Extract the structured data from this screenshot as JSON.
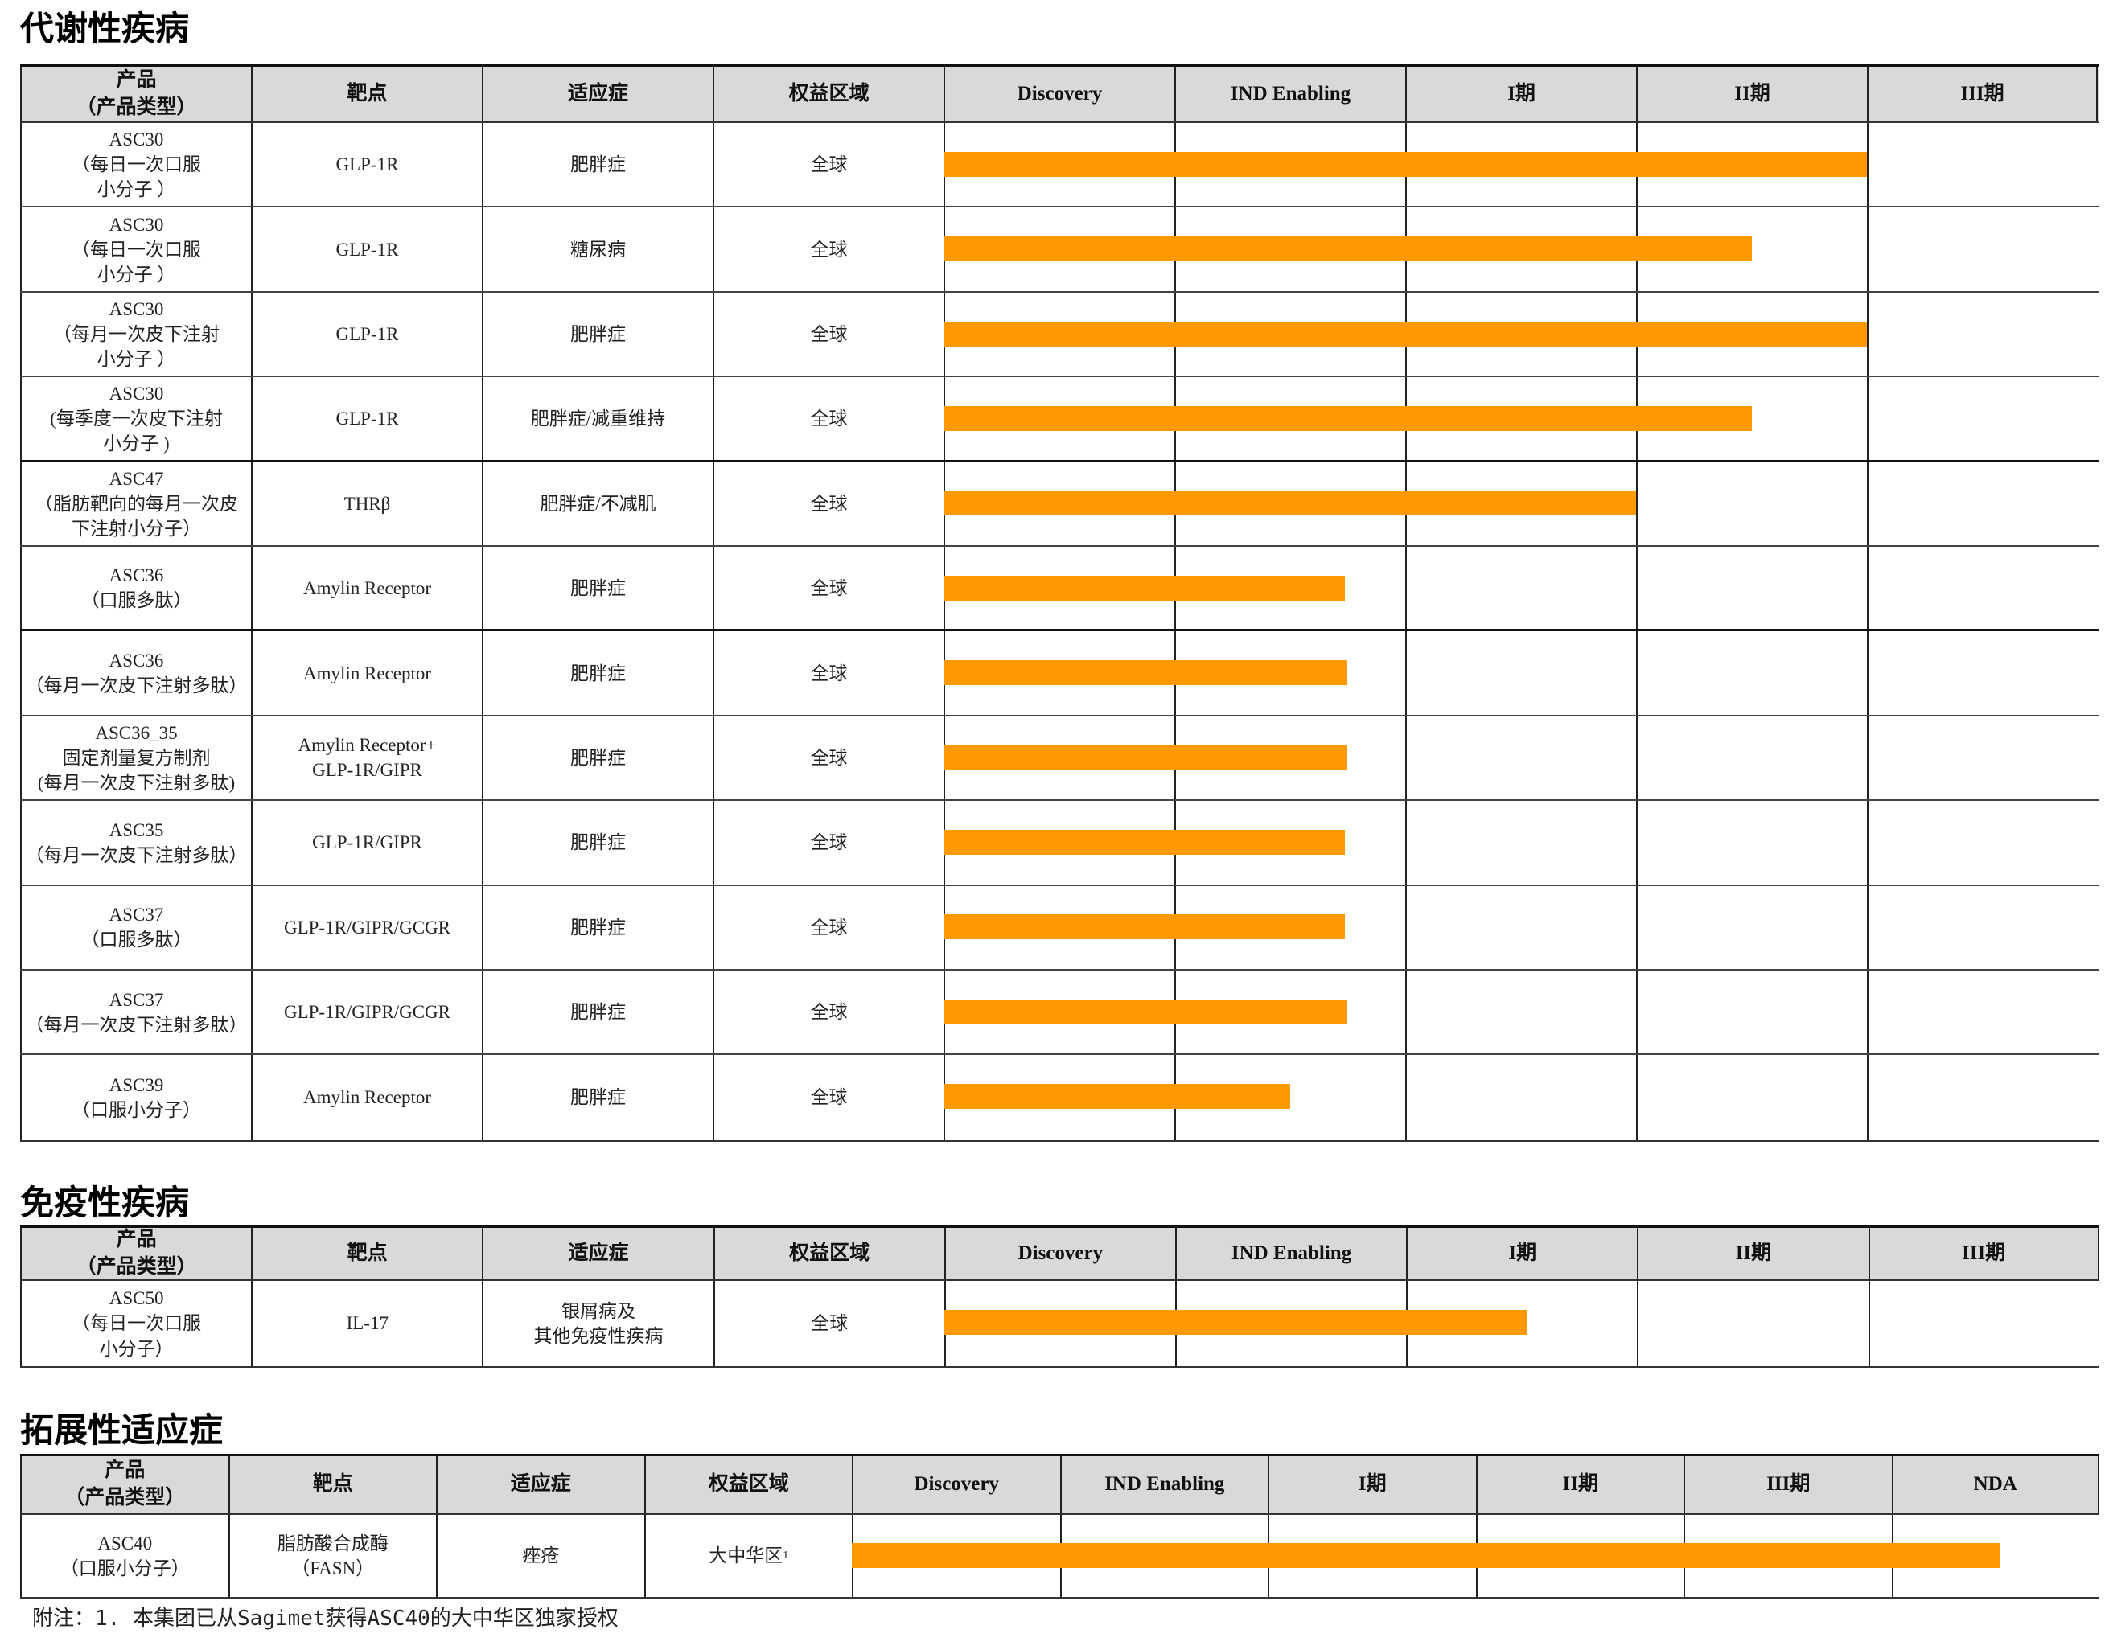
{
  "colors": {
    "bar": "#ff9900",
    "header_bg": "#d9d9d9"
  },
  "sections": [
    {
      "title": "代谢性疾病",
      "headers": [
        "产品\n（产品类型）",
        "靶点",
        "适应症",
        "权益区域",
        "Discovery",
        "IND Enabling",
        "I期",
        "II期",
        "III期"
      ],
      "rows": [
        {
          "product": "ASC30\n（每日一次口服\n小分子 ）",
          "target": "GLP-1R",
          "indication": "肥胖症",
          "region": "全球",
          "progress_phases": 4.0
        },
        {
          "product": "ASC30\n（每日一次口服\n小分子 ）",
          "target": "GLP-1R",
          "indication": "糖尿病",
          "region": "全球",
          "progress_phases": 3.5
        },
        {
          "product": "ASC30\n（每月一次皮下注射\n小分子 ）",
          "target": "GLP-1R",
          "indication": "肥胖症",
          "region": "全球",
          "progress_phases": 4.0
        },
        {
          "product": "ASC30\n(每季度一次皮下注射\n小分子 )",
          "target": "GLP-1R",
          "indication": "肥胖症/减重维持",
          "region": "全球",
          "progress_phases": 3.5
        },
        {
          "product": "ASC47\n（脂肪靶向的每月一次皮\n下注射小分子）",
          "target": "THRβ",
          "indication": "肥胖症/不减肌",
          "region": "全球",
          "progress_phases": 3.0
        },
        {
          "product": "ASC36\n（口服多肽）",
          "target": "Amylin Receptor",
          "indication": "肥胖症",
          "region": "全球",
          "progress_phases": 1.74
        },
        {
          "product": "ASC36\n（每月一次皮下注射多肽）",
          "target": "Amylin Receptor",
          "indication": "肥胖症",
          "region": "全球",
          "progress_phases": 1.75
        },
        {
          "product": "ASC36_35\n固定剂量复方制剂\n(每月一次皮下注射多肽)",
          "target": "Amylin Receptor+\nGLP-1R/GIPR",
          "indication": "肥胖症",
          "region": "全球",
          "progress_phases": 1.75
        },
        {
          "product": "ASC35\n（每月一次皮下注射多肽）",
          "target": "GLP-1R/GIPR",
          "indication": "肥胖症",
          "region": "全球",
          "progress_phases": 1.74
        },
        {
          "product": "ASC37\n（口服多肽）",
          "target": "GLP-1R/GIPR/GCGR",
          "indication": "肥胖症",
          "region": "全球",
          "progress_phases": 1.74
        },
        {
          "product": "ASC37\n（每月一次皮下注射多肽）",
          "target": "GLP-1R/GIPR/GCGR",
          "indication": "肥胖症",
          "region": "全球",
          "progress_phases": 1.75
        },
        {
          "product": "ASC39\n（口服小分子）",
          "target": "Amylin Receptor",
          "indication": "肥胖症",
          "region": "全球",
          "progress_phases": 1.5
        }
      ]
    },
    {
      "title": "免疫性疾病",
      "headers": [
        "产品\n（产品类型）",
        "靶点",
        "适应症",
        "权益区域",
        "Discovery",
        "IND Enabling",
        "I期",
        "II期",
        "III期"
      ],
      "rows": [
        {
          "product": "ASC50\n（每日一次口服\n小分子）",
          "target": "IL-17",
          "indication": "银屑病及\n其他免疫性疾病",
          "region": "全球",
          "progress_phases": 2.52
        }
      ]
    },
    {
      "title": "拓展性适应症",
      "headers": [
        "产品\n（产品类型）",
        "靶点",
        "适应症",
        "权益区域",
        "Discovery",
        "IND Enabling",
        "I期",
        "II期",
        "III期",
        "NDA"
      ],
      "rows": [
        {
          "product": "ASC40\n（口服小分子）",
          "target": "脂肪酸合成酶\n（FASN）",
          "indication": "痤疮",
          "region": "大中华区",
          "region_sup": "1",
          "progress_phases": 5.52
        }
      ]
    }
  ],
  "footnote": "附注：1. 本集团已从Sagimet获得ASC40的大中华区独家授权"
}
